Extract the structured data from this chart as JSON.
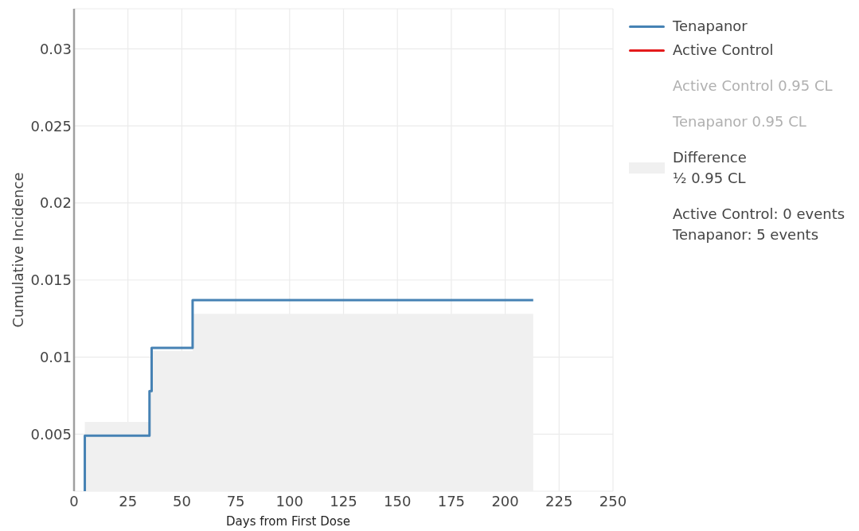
{
  "chart_data": {
    "type": "step",
    "xlabel": "Days from First Dose",
    "ylabel": "Cumulative Incidence",
    "series": [
      {
        "name": "Tenapanor",
        "color": "#4682b4",
        "x": [
          5,
          5,
          35,
          36,
          55,
          213
        ],
        "values": [
          0.0013,
          0.0049,
          0.0078,
          0.0106,
          0.0137,
          0.0137
        ]
      },
      {
        "name": "Active Control",
        "color": "#e41a1c"
      },
      {
        "name": "Difference\n½ 0.95 CL",
        "type": "area",
        "color": "#f0f0f0",
        "x": [
          5,
          35,
          36,
          55,
          213
        ],
        "values": [
          0.0058,
          0.0078,
          0.0104,
          0.0128,
          0.0128
        ]
      }
    ],
    "xlim": [
      0,
      250
    ],
    "xticks": [
      0,
      25,
      50,
      75,
      100,
      125,
      150,
      175,
      200,
      225,
      250
    ],
    "ylim": [
      0.0013,
      0.0326
    ],
    "yticks": [
      0.005,
      0.01,
      0.015,
      0.02,
      0.025,
      0.03
    ],
    "grid": true,
    "legend": "right",
    "annotations": [
      "Active Control 0.95 CL",
      "Tenapanor 0.95 CL",
      "Active Control: 0 events\nTenapanor: 5 events"
    ]
  }
}
